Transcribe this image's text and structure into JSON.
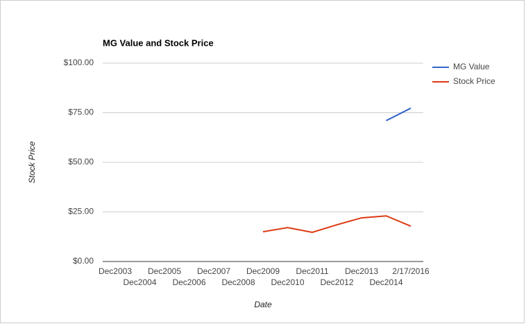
{
  "chart_data": {
    "type": "line",
    "title": "MG Value and Stock Price",
    "x_label": "Date",
    "y_label": "Stock Price",
    "categories": [
      "Dec2003",
      "Dec2004",
      "Dec2005",
      "Dec2006",
      "Dec2007",
      "Dec2008",
      "Dec2009",
      "Dec2010",
      "Dec2011",
      "Dec2012",
      "Dec2013",
      "Dec2014",
      "2/17/2016"
    ],
    "series": [
      {
        "name": "MG Value",
        "color": "#3366cc",
        "values": [
          null,
          null,
          null,
          null,
          null,
          null,
          null,
          null,
          null,
          null,
          null,
          71,
          77.3
        ]
      },
      {
        "name": "Stock Price",
        "color": "#dc3912",
        "values": [
          null,
          null,
          null,
          null,
          null,
          null,
          15,
          17.1,
          14.7,
          18.5,
          22,
          23,
          17.8
        ]
      }
    ],
    "ylim": [
      0,
      100
    ],
    "yticks": [
      {
        "value": 0,
        "label": "$0.00"
      },
      {
        "value": 25,
        "label": "$25.00"
      },
      {
        "value": 50,
        "label": "$50.00"
      },
      {
        "value": 75,
        "label": "$75.00"
      },
      {
        "value": 100,
        "label": "$100.00"
      }
    ],
    "grid": true,
    "legend": "right"
  }
}
